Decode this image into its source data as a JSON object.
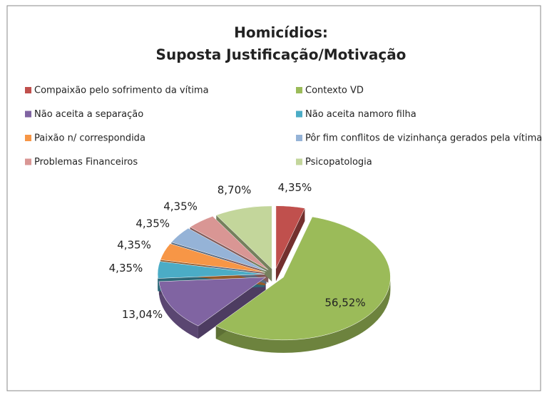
{
  "chart_data": {
    "type": "pie3d",
    "title": "Homicídios:",
    "subtitle": "Suposta Justificação/Motivação",
    "categories": [
      "Compaixão pelo sofrimento da vítima",
      "Contexto VD",
      "Não aceita a separação",
      "Não aceita namoro filha",
      "Paixão n/ correspondida",
      "Pôr fim conflitos de vizinhança gerados pela vítima",
      "Problemas Financeiros",
      "Psicopatologia"
    ],
    "values": [
      4.35,
      56.52,
      13.04,
      4.35,
      4.35,
      4.35,
      4.35,
      8.7
    ],
    "value_labels": [
      "4,35%",
      "56,52%",
      "13,04%",
      "4,35%",
      "4,35%",
      "4,35%",
      "4,35%",
      "8,70%"
    ],
    "colors": [
      "#c0504d",
      "#9bbb59",
      "#8064a2",
      "#4bacc6",
      "#f79646",
      "#95b3d7",
      "#d99694",
      "#c3d69b"
    ],
    "legend": "top"
  }
}
